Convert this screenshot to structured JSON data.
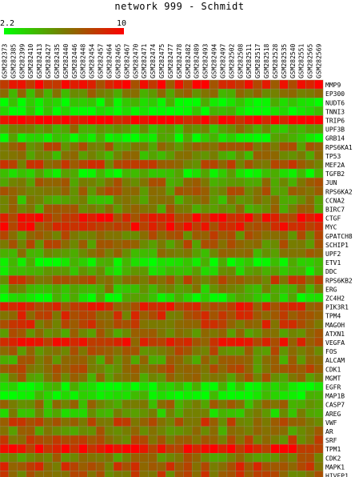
{
  "chart_data": {
    "type": "heatmap",
    "title": "network 999 - Schmidt",
    "color_scale": {
      "min": 2.2,
      "max": 10,
      "low_color": "#00ff00",
      "mid_color": "#7a7a00",
      "high_color": "#ff0000"
    },
    "columns": [
      "GSM282373",
      "GSM282385",
      "GSM282399",
      "GSM282410",
      "GSM282413",
      "GSM282427",
      "GSM282435",
      "GSM282440",
      "GSM282446",
      "GSM282448",
      "GSM282454",
      "GSM282457",
      "GSM282464",
      "GSM282465",
      "GSM282467",
      "GSM282470",
      "GSM282471",
      "GSM282474",
      "GSM282475",
      "GSM282477",
      "GSM282478",
      "GSM282482",
      "GSM282489",
      "GSM282493",
      "GSM282494",
      "GSM282497",
      "GSM282502",
      "GSM282508",
      "GSM282511",
      "GSM282517",
      "GSM282518",
      "GSM282528",
      "GSM282535",
      "GSM282540",
      "GSM282551",
      "GSM282565",
      "GSM282569"
    ],
    "rows": [
      "MMP9",
      "EP300",
      "NUDT6",
      "TNNI3",
      "TRIP6",
      "UPF3B",
      "GRB14",
      "RPS6KA1",
      "TP53",
      "MEF2A",
      "TGFB2",
      "JUN",
      "RPS6KA2",
      "CCNA2",
      "BIRC7",
      "CTGF",
      "MYC",
      "GPATCH8",
      "SCHIP1",
      "UPF2",
      "ETV1",
      "DDC",
      "RPS6KB2",
      "ERG",
      "ZC4H2",
      "PIK3R1",
      "TPM4",
      "MAGOH",
      "ATXN1",
      "VEGFA",
      "FOS",
      "ALCAM",
      "CDK1",
      "MGMT",
      "EGFR",
      "MAP1B",
      "CASP7",
      "AREG",
      "VWF",
      "AR",
      "SRF",
      "TPM1",
      "CDK2",
      "MAPK1",
      "HIVEP1"
    ],
    "row_means": [
      8.6,
      5.6,
      3.2,
      3.0,
      9.6,
      5.2,
      3.4,
      6.4,
      5.6,
      7.0,
      3.6,
      6.0,
      6.2,
      5.4,
      5.8,
      8.8,
      8.6,
      6.6,
      6.4,
      5.6,
      3.2,
      4.2,
      7.0,
      5.0,
      3.4,
      8.2,
      7.4,
      7.4,
      6.2,
      8.2,
      6.6,
      5.8,
      6.4,
      6.0,
      3.0,
      3.2,
      5.6,
      4.6,
      7.0,
      5.8,
      6.8,
      9.4,
      6.2,
      7.4,
      7.0
    ],
    "values": []
  }
}
